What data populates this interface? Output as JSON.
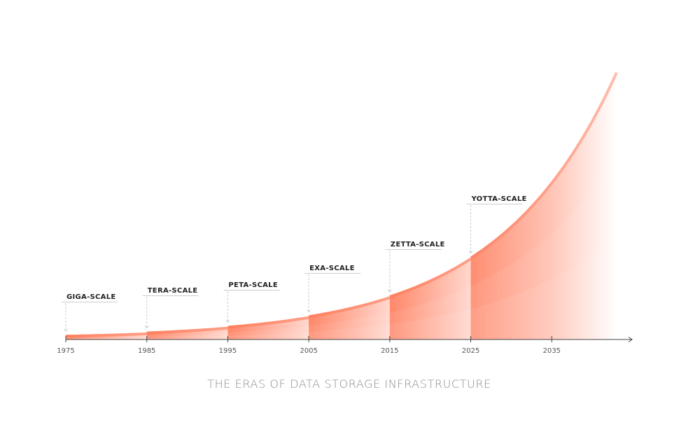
{
  "chart_data": {
    "type": "area",
    "title": "THE ERAS OF DATA STORAGE INFRASTRUCTURE",
    "xlabel": "",
    "ylabel": "",
    "x_ticks": [
      "1975",
      "1985",
      "1995",
      "2005",
      "2015",
      "2025",
      "2035"
    ],
    "xlim": [
      1975,
      2043
    ],
    "y_scale": "exponential (unlabeled)",
    "grid": false,
    "legend": "none",
    "eras": [
      {
        "label": "GIGA-SCALE",
        "start_year": 1975
      },
      {
        "label": "TERA-SCALE",
        "start_year": 1985
      },
      {
        "label": "PETA-SCALE",
        "start_year": 1995
      },
      {
        "label": "EXA-SCALE",
        "start_year": 2005
      },
      {
        "label": "ZETTA-SCALE",
        "start_year": 2015
      },
      {
        "label": "YOTTA-SCALE",
        "start_year": 2025
      }
    ],
    "colors": {
      "accent": "#ff7a59",
      "fade": "#ffffff",
      "axis": "#444444",
      "leader": "#cccccc"
    }
  }
}
